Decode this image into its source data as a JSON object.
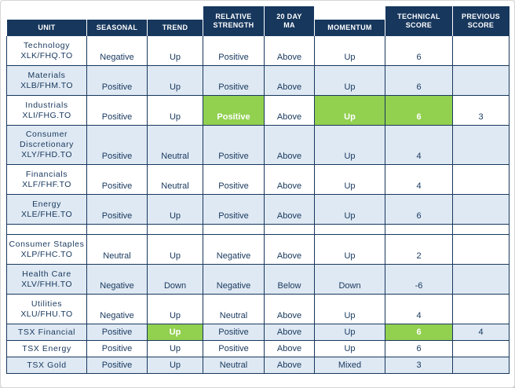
{
  "chart_data": {
    "type": "table",
    "columns": [
      {
        "id": "unit",
        "label": "UNIT",
        "tall": false
      },
      {
        "id": "seasonal",
        "label": "SEASONAL",
        "tall": false
      },
      {
        "id": "trend",
        "label": "TREND",
        "tall": false
      },
      {
        "id": "relative_strength",
        "label": "RELATIVE\nSTRENGTH",
        "tall": true
      },
      {
        "id": "ma20",
        "label": "20 DAY\nMA",
        "tall": true
      },
      {
        "id": "momentum",
        "label": "MOMENTUM",
        "tall": false
      },
      {
        "id": "technical_score",
        "label": "TECHNICAL\nSCORE",
        "tall": true
      },
      {
        "id": "previous_score",
        "label": "PREVIOUS\nSCORE",
        "tall": true
      }
    ],
    "rows": [
      {
        "name": "Technology",
        "ticker": "XLK/FHQ.TO",
        "seasonal": "Negative",
        "trend": "Up",
        "relative_strength": "Positive",
        "ma20": "Above",
        "momentum": "Up",
        "technical_score": "6",
        "previous_score": "",
        "highlights": []
      },
      {
        "name": "Materials",
        "ticker": "XLB/FHM.TO",
        "seasonal": "Positive",
        "trend": "Up",
        "relative_strength": "Positive",
        "ma20": "Above",
        "momentum": "Up",
        "technical_score": "6",
        "previous_score": "",
        "highlights": []
      },
      {
        "name": "Industrials",
        "ticker": "XLI/FHG.TO",
        "seasonal": "Positive",
        "trend": "Up",
        "relative_strength": "Positive",
        "ma20": "Above",
        "momentum": "Up",
        "technical_score": "6",
        "previous_score": "3",
        "highlights": [
          "relative_strength",
          "momentum",
          "technical_score"
        ]
      },
      {
        "name": "Consumer Discretionary",
        "ticker": "XLY/FHD.TO",
        "seasonal": "Positive",
        "trend": "Neutral",
        "relative_strength": "Positive",
        "ma20": "Above",
        "momentum": "Up",
        "technical_score": "4",
        "previous_score": "",
        "highlights": []
      },
      {
        "name": "Financials",
        "ticker": "XLF/FHF.TO",
        "seasonal": "Positive",
        "trend": "Neutral",
        "relative_strength": "Positive",
        "ma20": "Above",
        "momentum": "Up",
        "technical_score": "4",
        "previous_score": "",
        "highlights": []
      },
      {
        "name": "Energy",
        "ticker": "XLE/FHE.TO",
        "seasonal": "Positive",
        "trend": "Up",
        "relative_strength": "Positive",
        "ma20": "Above",
        "momentum": "Up",
        "technical_score": "6",
        "previous_score": "",
        "highlights": []
      },
      {
        "spacer": true
      },
      {
        "name": "Consumer Staples",
        "ticker": "XLP/FHC.TO",
        "seasonal": "Neutral",
        "trend": "Up",
        "relative_strength": "Negative",
        "ma20": "Above",
        "momentum": "Up",
        "technical_score": "2",
        "previous_score": "",
        "highlights": []
      },
      {
        "name": "Health Care",
        "ticker": "XLV/FHH.TO",
        "seasonal": "Negative",
        "trend": "Down",
        "relative_strength": "Negative",
        "ma20": "Below",
        "momentum": "Down",
        "technical_score": "-6",
        "previous_score": "",
        "highlights": []
      },
      {
        "name": "Utilities",
        "ticker": "XLU/FHU.TO",
        "seasonal": "Negative",
        "trend": "Up",
        "relative_strength": "Neutral",
        "ma20": "Above",
        "momentum": "Up",
        "technical_score": "4",
        "previous_score": "",
        "highlights": []
      },
      {
        "name": "TSX Financial",
        "seasonal": "Positive",
        "trend": "Up",
        "relative_strength": "Positive",
        "ma20": "Above",
        "momentum": "Up",
        "technical_score": "6",
        "previous_score": "4",
        "highlights": [
          "trend",
          "technical_score"
        ]
      },
      {
        "name": "TSX Energy",
        "seasonal": "Positive",
        "trend": "Up",
        "relative_strength": "Positive",
        "ma20": "Above",
        "momentum": "Up",
        "technical_score": "6",
        "previous_score": "",
        "highlights": []
      },
      {
        "name": "TSX Gold",
        "seasonal": "Positive",
        "trend": "Up",
        "relative_strength": "Neutral",
        "ma20": "Above",
        "momentum": "Mixed",
        "technical_score": "3",
        "previous_score": "",
        "highlights": []
      }
    ]
  },
  "colors": {
    "navy": "#17375d",
    "header_text": "#ffffff",
    "green_highlight": "#92d050",
    "alt_row": "#dfe9f3",
    "body_text": "#17375d"
  }
}
